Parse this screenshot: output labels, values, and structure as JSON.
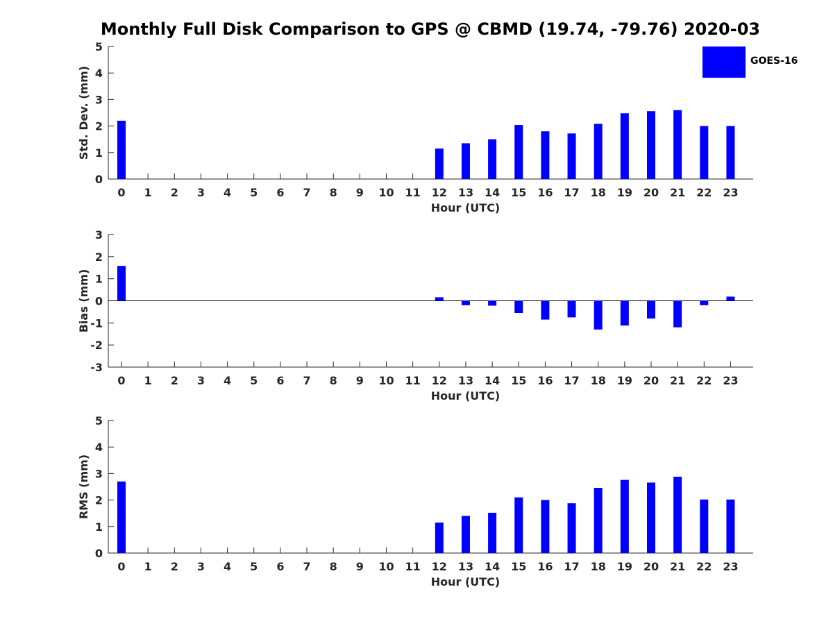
{
  "title": "Monthly Full Disk Comparison to GPS @ CBMD (19.74, -79.76) 2020-03",
  "legend": {
    "label": "GOES-16",
    "color": "#0000ff"
  },
  "chart_data": [
    {
      "type": "bar",
      "name": "std-dev",
      "ylabel": "Std. Dev. (mm)",
      "xlabel": "Hour (UTC)",
      "ylim": [
        0,
        5
      ],
      "yticks": [
        0,
        1,
        2,
        3,
        4,
        5
      ],
      "x": [
        0,
        1,
        2,
        3,
        4,
        5,
        6,
        7,
        8,
        9,
        10,
        11,
        12,
        13,
        14,
        15,
        16,
        17,
        18,
        19,
        20,
        21,
        22,
        23
      ],
      "series": [
        {
          "name": "GOES-16",
          "values": [
            2.2,
            null,
            null,
            null,
            null,
            null,
            null,
            null,
            null,
            null,
            null,
            null,
            1.15,
            1.35,
            1.5,
            2.04,
            1.8,
            1.72,
            2.08,
            2.48,
            2.56,
            2.6,
            2.0,
            2.0
          ]
        }
      ]
    },
    {
      "type": "bar",
      "name": "bias",
      "ylabel": "Bias (mm)",
      "xlabel": "Hour (UTC)",
      "ylim": [
        -3,
        3
      ],
      "yticks": [
        -3,
        -2,
        -1,
        0,
        1,
        2,
        3
      ],
      "zero_line": true,
      "x": [
        0,
        1,
        2,
        3,
        4,
        5,
        6,
        7,
        8,
        9,
        10,
        11,
        12,
        13,
        14,
        15,
        16,
        17,
        18,
        19,
        20,
        21,
        22,
        23
      ],
      "series": [
        {
          "name": "GOES-16",
          "values": [
            1.58,
            null,
            null,
            null,
            null,
            null,
            null,
            null,
            null,
            null,
            null,
            null,
            0.16,
            -0.2,
            -0.22,
            -0.55,
            -0.85,
            -0.75,
            -1.3,
            -1.12,
            -0.8,
            -1.2,
            -0.2,
            0.19
          ]
        }
      ]
    },
    {
      "type": "bar",
      "name": "rms",
      "ylabel": "RMS (mm)",
      "xlabel": "Hour (UTC)",
      "ylim": [
        0,
        5
      ],
      "yticks": [
        0,
        1,
        2,
        3,
        4,
        5
      ],
      "x": [
        0,
        1,
        2,
        3,
        4,
        5,
        6,
        7,
        8,
        9,
        10,
        11,
        12,
        13,
        14,
        15,
        16,
        17,
        18,
        19,
        20,
        21,
        22,
        23
      ],
      "series": [
        {
          "name": "GOES-16",
          "values": [
            2.7,
            null,
            null,
            null,
            null,
            null,
            null,
            null,
            null,
            null,
            null,
            null,
            1.15,
            1.4,
            1.52,
            2.1,
            2.0,
            1.88,
            2.46,
            2.76,
            2.66,
            2.88,
            2.02,
            2.02
          ]
        }
      ]
    }
  ]
}
